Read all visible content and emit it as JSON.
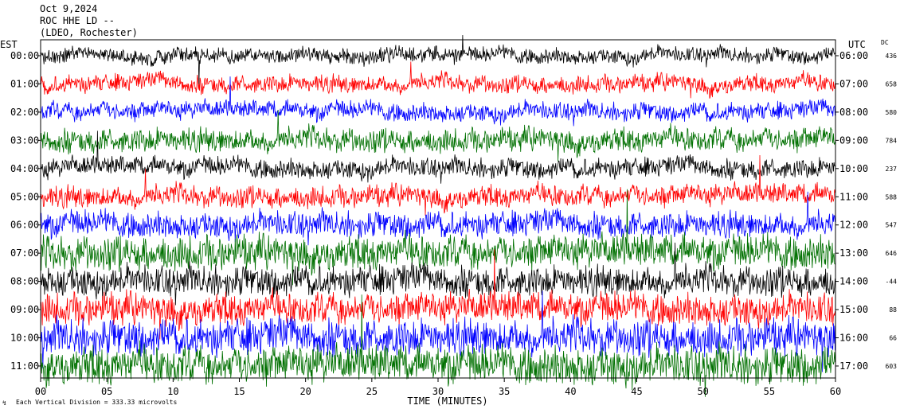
{
  "header": {
    "date": "Oct 9,2024",
    "station": "ROC HHE LD --",
    "network": "(LDEO, Rochester)",
    "left_zone": "EST",
    "right_zone": "UTC",
    "dc_label": "DC"
  },
  "footer": {
    "xlabel": "TIME (MINUTES)",
    "scale_note": "Each Vertical Division = 333.33 microvolts"
  },
  "chart_data": {
    "type": "line",
    "title": "ROC HHE LD --",
    "xlabel": "TIME (MINUTES)",
    "ylabel": "",
    "xlim": [
      0,
      60
    ],
    "x_ticks": [
      "00",
      "05",
      "10",
      "15",
      "20",
      "25",
      "30",
      "35",
      "40",
      "45",
      "50",
      "55",
      "60"
    ],
    "trace_colors": [
      "#000000",
      "#ff0000",
      "#0000ff",
      "#007000"
    ],
    "rows": [
      {
        "est": "00:00",
        "utc": "06:00",
        "dc": "436",
        "amplitude": 0.35
      },
      {
        "est": "01:00",
        "utc": "07:00",
        "dc": "658",
        "amplitude": 0.4
      },
      {
        "est": "02:00",
        "utc": "08:00",
        "dc": "580",
        "amplitude": 0.42
      },
      {
        "est": "03:00",
        "utc": "09:00",
        "dc": "784",
        "amplitude": 0.55
      },
      {
        "est": "04:00",
        "utc": "10:00",
        "dc": "237",
        "amplitude": 0.45
      },
      {
        "est": "05:00",
        "utc": "11:00",
        "dc": "588",
        "amplitude": 0.5
      },
      {
        "est": "06:00",
        "utc": "12:00",
        "dc": "547",
        "amplitude": 0.6
      },
      {
        "est": "07:00",
        "utc": "13:00",
        "dc": "646",
        "amplitude": 0.8
      },
      {
        "est": "08:00",
        "utc": "14:00",
        "dc": "-44",
        "amplitude": 0.7
      },
      {
        "est": "09:00",
        "utc": "15:00",
        "dc": "88",
        "amplitude": 0.75
      },
      {
        "est": "10:00",
        "utc": "16:00",
        "dc": "66",
        "amplitude": 0.85
      },
      {
        "est": "11:00",
        "utc": "17:00",
        "dc": "603",
        "amplitude": 0.9
      }
    ]
  }
}
